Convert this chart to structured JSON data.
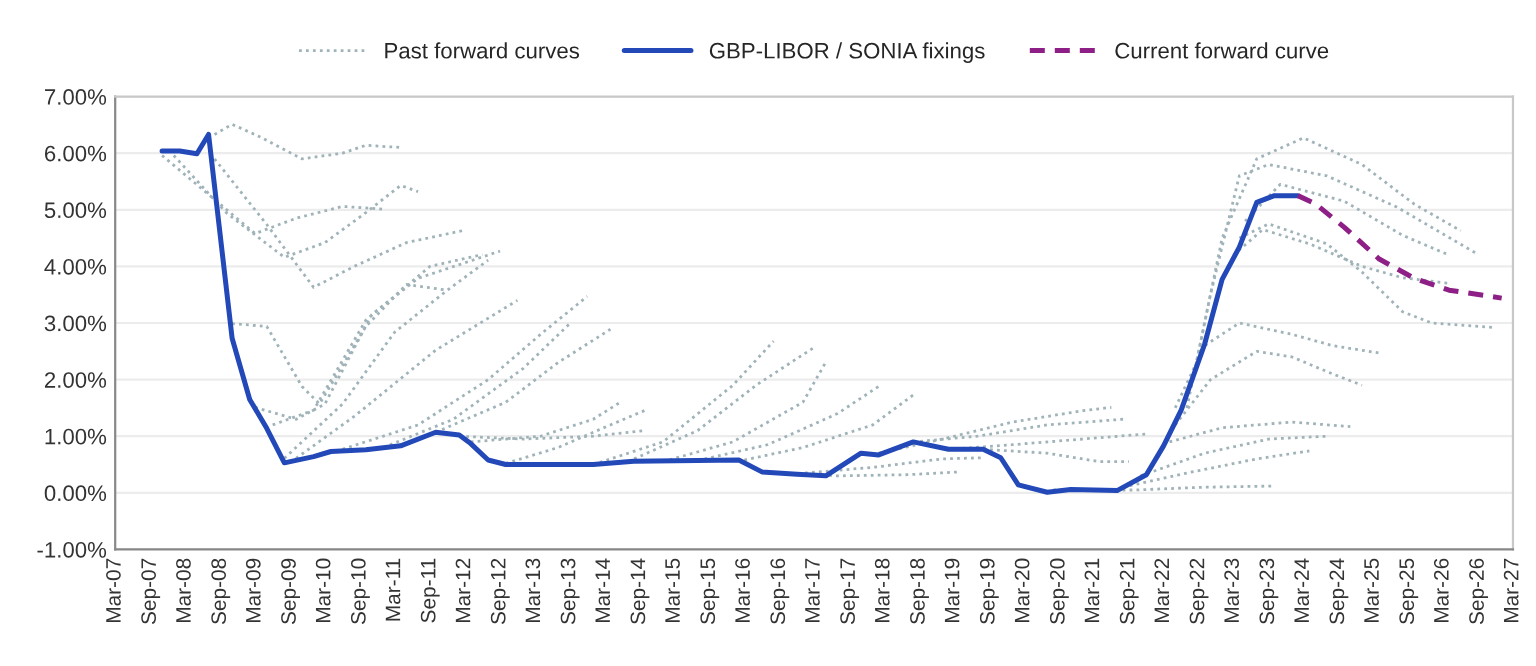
{
  "chart_data": {
    "type": "line",
    "xlim": [
      "2007-03",
      "2027-03"
    ],
    "xticks": [
      {
        "value": "2007-03",
        "label": "Mar-07"
      },
      {
        "value": "2007-09",
        "label": "Sep-07"
      },
      {
        "value": "2008-03",
        "label": "Mar-08"
      },
      {
        "value": "2008-09",
        "label": "Sep-08"
      },
      {
        "value": "2009-03",
        "label": "Mar-09"
      },
      {
        "value": "2009-09",
        "label": "Sep-09"
      },
      {
        "value": "2010-03",
        "label": "Mar-10"
      },
      {
        "value": "2010-09",
        "label": "Sep-10"
      },
      {
        "value": "2011-03",
        "label": "Mar-11"
      },
      {
        "value": "2011-09",
        "label": "Sep-11"
      },
      {
        "value": "2012-03",
        "label": "Mar-12"
      },
      {
        "value": "2012-09",
        "label": "Sep-12"
      },
      {
        "value": "2013-03",
        "label": "Mar-13"
      },
      {
        "value": "2013-09",
        "label": "Sep-13"
      },
      {
        "value": "2014-03",
        "label": "Mar-14"
      },
      {
        "value": "2014-09",
        "label": "Sep-14"
      },
      {
        "value": "2015-03",
        "label": "Mar-15"
      },
      {
        "value": "2015-09",
        "label": "Sep-15"
      },
      {
        "value": "2016-03",
        "label": "Mar-16"
      },
      {
        "value": "2016-09",
        "label": "Sep-16"
      },
      {
        "value": "2017-03",
        "label": "Mar-17"
      },
      {
        "value": "2017-09",
        "label": "Sep-17"
      },
      {
        "value": "2018-03",
        "label": "Mar-18"
      },
      {
        "value": "2018-09",
        "label": "Sep-18"
      },
      {
        "value": "2019-03",
        "label": "Mar-19"
      },
      {
        "value": "2019-09",
        "label": "Sep-19"
      },
      {
        "value": "2020-03",
        "label": "Mar-20"
      },
      {
        "value": "2020-09",
        "label": "Sep-20"
      },
      {
        "value": "2021-03",
        "label": "Mar-21"
      },
      {
        "value": "2021-09",
        "label": "Sep-21"
      },
      {
        "value": "2022-03",
        "label": "Mar-22"
      },
      {
        "value": "2022-09",
        "label": "Sep-22"
      },
      {
        "value": "2023-03",
        "label": "Mar-23"
      },
      {
        "value": "2023-09",
        "label": "Sep-23"
      },
      {
        "value": "2024-03",
        "label": "Mar-24"
      },
      {
        "value": "2024-09",
        "label": "Sep-24"
      },
      {
        "value": "2025-03",
        "label": "Mar-25"
      },
      {
        "value": "2025-09",
        "label": "Sep-25"
      },
      {
        "value": "2026-03",
        "label": "Mar-26"
      },
      {
        "value": "2026-09",
        "label": "Sep-26"
      },
      {
        "value": "2027-03",
        "label": "Mar-27"
      }
    ],
    "ylim": [
      -1,
      7
    ],
    "yticks": [
      {
        "value": -1,
        "label": "-1.00%"
      },
      {
        "value": 0,
        "label": "0.00%"
      },
      {
        "value": 1,
        "label": "1.00%"
      },
      {
        "value": 2,
        "label": "2.00%"
      },
      {
        "value": 3,
        "label": "3.00%"
      },
      {
        "value": 4,
        "label": "4.00%"
      },
      {
        "value": 5,
        "label": "5.00%"
      },
      {
        "value": 6,
        "label": "6.00%"
      },
      {
        "value": 7,
        "label": "7.00%"
      }
    ],
    "grid": "y",
    "legend": "top",
    "series": [
      {
        "name": "Past forward curves",
        "color": "#9fb3b8",
        "line_style": "dotted",
        "x": [
          "2008-08",
          "2008-11",
          "2009-04",
          "2009-11",
          "2010-06",
          "2010-10",
          "2011-04"
        ],
        "values": [
          6.33,
          6.51,
          6.28,
          5.9,
          6.0,
          6.14,
          6.1
        ]
      },
      {
        "color": "#9fb3b8",
        "line_style": "dotted",
        "x": [
          "2007-11",
          "2008-07",
          "2009-03",
          "2009-10",
          "2010-06",
          "2011-01"
        ],
        "values": [
          5.96,
          5.27,
          4.58,
          4.85,
          5.06,
          5.01
        ]
      },
      {
        "color": "#9fb3b8",
        "line_style": "dotted",
        "x": [
          "2008-01",
          "2008-10",
          "2009-08",
          "2010-03",
          "2010-10",
          "2011-04",
          "2011-07"
        ],
        "values": [
          5.96,
          4.95,
          4.16,
          4.42,
          4.95,
          5.43,
          5.32
        ]
      },
      {
        "color": "#9fb3b8",
        "line_style": "dotted",
        "x": [
          "2008-08",
          "2009-05",
          "2010-01",
          "2010-08",
          "2011-05",
          "2012-03"
        ],
        "values": [
          5.9,
          4.74,
          3.63,
          4.0,
          4.42,
          4.64
        ]
      },
      {
        "color": "#9fb3b8",
        "line_style": "dotted",
        "x": [
          "2008-11",
          "2009-05",
          "2009-11",
          "2010-02",
          "2010-10",
          "2011-05",
          "2011-12"
        ],
        "values": [
          2.99,
          2.94,
          1.88,
          1.57,
          2.94,
          3.68,
          3.58
        ]
      },
      {
        "color": "#9fb3b8",
        "line_style": "dotted",
        "x": [
          "2009-03",
          "2009-10",
          "2010-03",
          "2010-11",
          "2011-07",
          "2012-09"
        ],
        "values": [
          1.51,
          1.3,
          1.57,
          3.15,
          3.79,
          4.27
        ]
      },
      {
        "color": "#9fb3b8",
        "line_style": "dotted",
        "x": [
          "2009-06",
          "2010-01",
          "2010-10",
          "2011-09",
          "2012-06"
        ],
        "values": [
          1.2,
          1.46,
          3.05,
          4.0,
          4.21
        ]
      },
      {
        "color": "#9fb3b8",
        "line_style": "dotted",
        "x": [
          "2009-08",
          "2010-06",
          "2011-03",
          "2011-12",
          "2012-07"
        ],
        "values": [
          0.61,
          1.57,
          2.84,
          3.58,
          4.11
        ]
      },
      {
        "color": "#9fb3b8",
        "line_style": "dotted",
        "x": [
          "2009-10",
          "2010-08",
          "2011-10",
          "2012-12"
        ],
        "values": [
          0.61,
          1.35,
          2.52,
          3.4
        ]
      },
      {
        "color": "#9fb3b8",
        "line_style": "dotted",
        "x": [
          "2010-06",
          "2011-07",
          "2012-07",
          "2013-04",
          "2013-12"
        ],
        "values": [
          0.77,
          1.2,
          2.0,
          2.8,
          3.47
        ]
      },
      {
        "color": "#9fb3b8",
        "line_style": "dotted",
        "x": [
          "2011-01",
          "2012-01",
          "2013-01",
          "2013-09"
        ],
        "values": [
          0.8,
          1.3,
          2.2,
          2.99
        ]
      },
      {
        "color": "#9fb3b8",
        "line_style": "dotted",
        "x": [
          "2011-10",
          "2012-10",
          "2013-07",
          "2014-04"
        ],
        "values": [
          1.07,
          1.6,
          2.3,
          2.89
        ]
      },
      {
        "color": "#9fb3b8",
        "line_style": "dotted",
        "x": [
          "2012-04",
          "2013-04",
          "2014-01",
          "2014-06"
        ],
        "values": [
          0.9,
          1.0,
          1.3,
          1.62
        ]
      },
      {
        "color": "#9fb3b8",
        "line_style": "dotted",
        "x": [
          "2012-10",
          "2013-07",
          "2014-04",
          "2014-10"
        ],
        "values": [
          0.52,
          0.8,
          1.2,
          1.46
        ]
      },
      {
        "color": "#9fb3b8",
        "line_style": "dotted",
        "x": [
          "2012-02",
          "2013-01",
          "2014-01",
          "2014-10"
        ],
        "values": [
          1.0,
          0.95,
          1.0,
          1.1
        ]
      },
      {
        "color": "#9fb3b8",
        "line_style": "dotted",
        "x": [
          "2014-01",
          "2015-01",
          "2016-01",
          "2016-08"
        ],
        "values": [
          0.5,
          0.9,
          1.9,
          2.68
        ]
      },
      {
        "color": "#9fb3b8",
        "line_style": "dotted",
        "x": [
          "2014-07",
          "2015-07",
          "2016-05",
          "2017-03"
        ],
        "values": [
          0.55,
          1.1,
          1.9,
          2.57
        ]
      },
      {
        "color": "#9fb3b8",
        "line_style": "dotted",
        "x": [
          "2015-01",
          "2016-01",
          "2017-01",
          "2017-05"
        ],
        "values": [
          0.55,
          0.9,
          1.6,
          2.31
        ]
      },
      {
        "color": "#9fb3b8",
        "line_style": "dotted",
        "x": [
          "2015-07",
          "2016-07",
          "2017-07",
          "2018-02"
        ],
        "values": [
          0.57,
          0.85,
          1.4,
          1.88
        ]
      },
      {
        "color": "#9fb3b8",
        "line_style": "dotted",
        "x": [
          "2016-03",
          "2017-01",
          "2018-01",
          "2018-08"
        ],
        "values": [
          0.58,
          0.8,
          1.2,
          1.73
        ]
      },
      {
        "color": "#9fb3b8",
        "line_style": "dotted",
        "x": [
          "2016-08",
          "2017-07",
          "2018-07",
          "2019-04"
        ],
        "values": [
          0.35,
          0.3,
          0.32,
          0.37
        ]
      },
      {
        "color": "#9fb3b8",
        "line_style": "dotted",
        "x": [
          "2016-11",
          "2018-01",
          "2019-01",
          "2019-08"
        ],
        "values": [
          0.33,
          0.45,
          0.6,
          0.62
        ]
      },
      {
        "color": "#9fb3b8",
        "line_style": "dotted",
        "x": [
          "2018-02",
          "2019-01",
          "2020-01",
          "2021-01",
          "2021-06"
        ],
        "values": [
          0.7,
          0.95,
          1.25,
          1.45,
          1.51
        ]
      },
      {
        "color": "#9fb3b8",
        "line_style": "dotted",
        "x": [
          "2018-08",
          "2019-07",
          "2020-07",
          "2021-08"
        ],
        "values": [
          0.9,
          1.0,
          1.2,
          1.3
        ]
      },
      {
        "color": "#9fb3b8",
        "line_style": "dotted",
        "x": [
          "2019-02",
          "2020-01",
          "2021-01",
          "2021-12"
        ],
        "values": [
          0.77,
          0.85,
          0.95,
          1.04
        ]
      },
      {
        "color": "#9fb3b8",
        "line_style": "dotted",
        "x": [
          "2019-08",
          "2020-07",
          "2021-04",
          "2021-09"
        ],
        "values": [
          0.77,
          0.7,
          0.55,
          0.55
        ]
      },
      {
        "color": "#9fb3b8",
        "line_style": "dotted",
        "x": [
          "2022-08",
          "2023-01",
          "2023-07",
          "2024-03",
          "2025-01",
          "2025-10",
          "2026-06"
        ],
        "values": [
          2.0,
          4.5,
          5.9,
          6.27,
          5.8,
          5.1,
          4.63
        ]
      },
      {
        "color": "#9fb3b8",
        "line_style": "dotted",
        "x": [
          "2022-07",
          "2022-11",
          "2023-04",
          "2023-09",
          "2024-07",
          "2025-07",
          "2026-09"
        ],
        "values": [
          1.5,
          3.5,
          5.6,
          5.8,
          5.6,
          5.05,
          4.21
        ]
      },
      {
        "color": "#9fb3b8",
        "line_style": "dotted",
        "x": [
          "2023-05",
          "2023-11",
          "2024-10",
          "2025-08",
          "2026-04"
        ],
        "values": [
          4.8,
          5.45,
          5.15,
          4.55,
          4.2
        ]
      },
      {
        "color": "#9fb3b8",
        "line_style": "dotted",
        "x": [
          "2023-04",
          "2023-09",
          "2024-07",
          "2025-01",
          "2025-08",
          "2026-01",
          "2026-12"
        ],
        "values": [
          4.5,
          4.75,
          4.4,
          3.9,
          3.2,
          3.0,
          2.92
        ]
      },
      {
        "color": "#9fb3b8",
        "line_style": "dotted",
        "x": [
          "2023-03",
          "2023-08",
          "2024-04",
          "2025-01",
          "2025-08",
          "2026-04"
        ],
        "values": [
          4.2,
          4.65,
          4.4,
          4.0,
          3.8,
          3.7
        ]
      },
      {
        "color": "#9fb3b8",
        "line_style": "dotted",
        "x": [
          "2022-05",
          "2022-10",
          "2023-04",
          "2024-01",
          "2024-08",
          "2025-04"
        ],
        "values": [
          1.5,
          2.6,
          3.0,
          2.8,
          2.6,
          2.47
        ]
      },
      {
        "color": "#9fb3b8",
        "line_style": "dotted",
        "x": [
          "2022-05",
          "2022-11",
          "2023-07",
          "2024-01",
          "2024-08",
          "2025-01"
        ],
        "values": [
          1.2,
          2.0,
          2.5,
          2.4,
          2.1,
          1.9
        ]
      },
      {
        "color": "#9fb3b8",
        "line_style": "dotted",
        "x": [
          "2022-04",
          "2023-01",
          "2024-01",
          "2024-11"
        ],
        "values": [
          0.9,
          1.15,
          1.25,
          1.17
        ]
      },
      {
        "color": "#9fb3b8",
        "line_style": "dotted",
        "x": [
          "2021-11",
          "2022-10",
          "2023-09",
          "2024-07"
        ],
        "values": [
          0.3,
          0.7,
          0.95,
          1.0
        ]
      },
      {
        "color": "#9fb3b8",
        "line_style": "dotted",
        "x": [
          "2021-08",
          "2022-07",
          "2023-07",
          "2024-04"
        ],
        "values": [
          0.1,
          0.35,
          0.6,
          0.74
        ]
      },
      {
        "color": "#9fb3b8",
        "line_style": "dotted",
        "x": [
          "2020-08",
          "2021-10",
          "2022-10",
          "2023-10"
        ],
        "values": [
          0.05,
          0.05,
          0.1,
          0.12
        ]
      },
      {
        "name": "GBP-LIBOR / SONIA fixings",
        "color": "#2348b8",
        "line_style": "solid",
        "x": [
          "2007-11",
          "2008-02",
          "2008-05",
          "2008-07",
          "2008-11",
          "2009-02",
          "2009-05",
          "2009-08",
          "2010-01",
          "2010-04",
          "2010-10",
          "2011-04",
          "2011-10",
          "2012-02",
          "2012-04",
          "2012-07",
          "2012-10",
          "2014-01",
          "2014-08",
          "2016-02",
          "2016-06",
          "2016-12",
          "2017-05",
          "2017-11",
          "2018-02",
          "2018-08",
          "2019-02",
          "2019-08",
          "2019-11",
          "2020-02",
          "2020-07",
          "2020-11",
          "2021-07",
          "2021-12",
          "2022-03",
          "2022-06",
          "2022-10",
          "2023-01",
          "2023-04",
          "2023-07",
          "2023-10",
          "2024-02"
        ],
        "values": [
          6.04,
          6.04,
          5.99,
          6.33,
          2.73,
          1.65,
          1.14,
          0.53,
          0.64,
          0.73,
          0.76,
          0.83,
          1.07,
          1.02,
          0.87,
          0.58,
          0.5,
          0.5,
          0.56,
          0.58,
          0.37,
          0.33,
          0.3,
          0.7,
          0.67,
          0.9,
          0.77,
          0.77,
          0.62,
          0.14,
          0.01,
          0.06,
          0.04,
          0.32,
          0.83,
          1.46,
          2.62,
          3.77,
          4.34,
          5.13,
          5.25,
          5.25
        ]
      },
      {
        "name": "Current forward curve",
        "color": "#8e1f86",
        "line_style": "dashed",
        "x": [
          "2024-02",
          "2024-05",
          "2024-10",
          "2025-04",
          "2025-10",
          "2026-04",
          "2027-01"
        ],
        "values": [
          5.25,
          5.11,
          4.69,
          4.13,
          3.79,
          3.58,
          3.44
        ]
      }
    ]
  }
}
